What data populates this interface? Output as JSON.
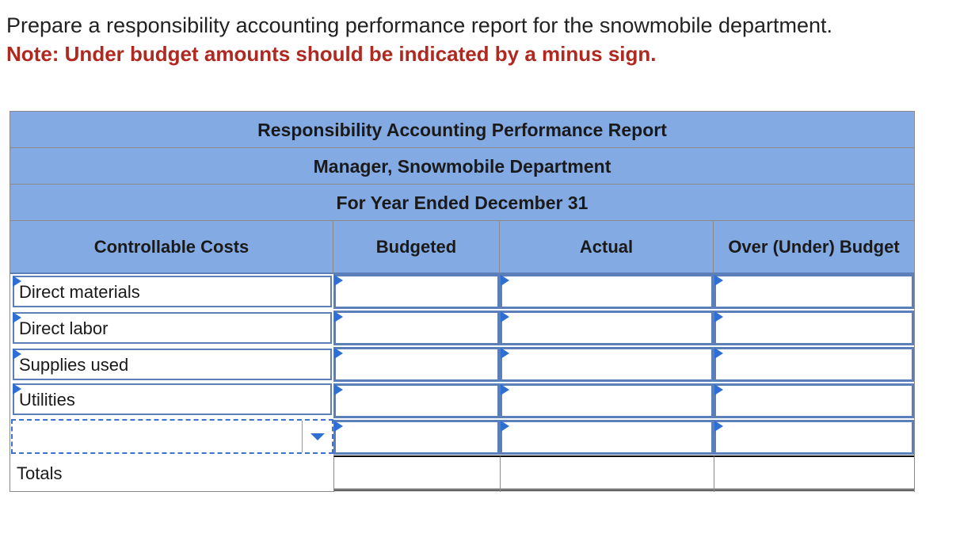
{
  "instructions": {
    "main": "Prepare a responsibility accounting performance report for the snowmobile department.",
    "note": "Note: Under budget amounts should be indicated by a minus sign."
  },
  "report": {
    "title": "Responsibility Accounting Performance Report",
    "subtitle": "Manager, Snowmobile Department",
    "period": "For Year Ended December 31",
    "columns": {
      "costs": "Controllable Costs",
      "budgeted": "Budgeted",
      "actual": "Actual",
      "variance": "Over (Under) Budget"
    },
    "rows": [
      {
        "label": "Direct materials",
        "budgeted": "",
        "actual": "",
        "variance": ""
      },
      {
        "label": "Direct labor",
        "budgeted": "",
        "actual": "",
        "variance": ""
      },
      {
        "label": "Supplies used",
        "budgeted": "",
        "actual": "",
        "variance": ""
      },
      {
        "label": "Utilities",
        "budgeted": "",
        "actual": "",
        "variance": ""
      }
    ],
    "dropdown_row": {
      "selected": "",
      "budgeted": "",
      "actual": "",
      "variance": ""
    },
    "totals": {
      "label": "Totals",
      "budgeted": "",
      "actual": "",
      "variance": ""
    }
  },
  "colors": {
    "header_bg": "#84aae3",
    "note_red": "#b0281f",
    "input_border": "#5b7fb8",
    "marker_blue": "#2e6fd6"
  }
}
